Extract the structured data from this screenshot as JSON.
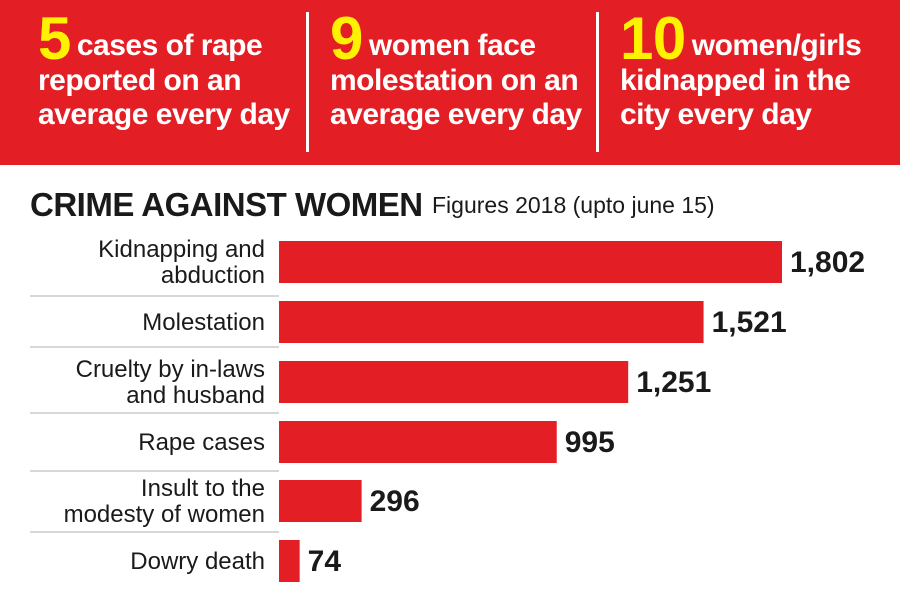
{
  "banner": {
    "stats": [
      {
        "number": "5",
        "lines": [
          "cases of rape",
          "reported on an",
          "average every day"
        ]
      },
      {
        "number": "9",
        "lines": [
          "women face",
          "molestation on an",
          "average every day"
        ]
      },
      {
        "number": "10",
        "lines": [
          "women/girls",
          "kidnapped in the",
          "city every day"
        ]
      }
    ]
  },
  "colors": {
    "accent": "#e31e24",
    "highlight": "#fff200",
    "divider": "#cccccc"
  },
  "chart_data": {
    "type": "bar",
    "orientation": "horizontal",
    "title": "CRIME AGAINST WOMEN",
    "subtitle": "Figures 2018 (upto june 15)",
    "categories": [
      [
        "Kidnapping and",
        "abduction"
      ],
      [
        "Molestation"
      ],
      [
        "Cruelty by in-laws",
        "and husband"
      ],
      [
        "Rape cases"
      ],
      [
        "Insult to the",
        "modesty of women"
      ],
      [
        "Dowry death"
      ]
    ],
    "values": [
      1802,
      1521,
      1251,
      995,
      296,
      74
    ],
    "value_labels": [
      "1,802",
      "1,521",
      "1,251",
      "995",
      "296",
      "74"
    ],
    "xlim": [
      0,
      1802
    ],
    "grid": false,
    "legend": "none"
  }
}
